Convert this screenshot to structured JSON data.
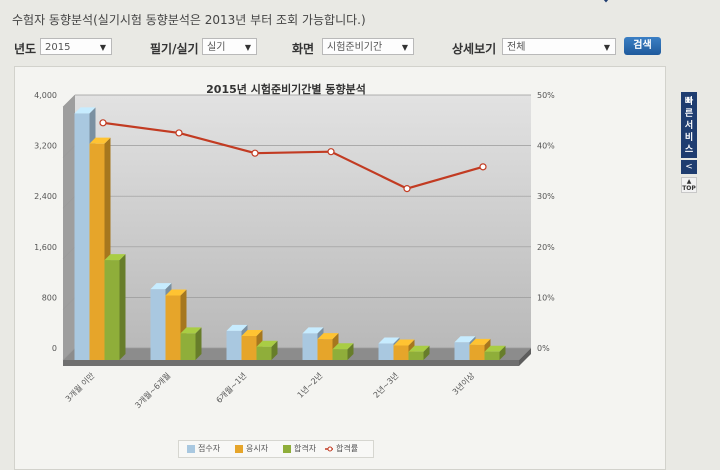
{
  "page": {
    "title": "수험자 동향분석(실기시험 동향분석은 2013년 부터 조회 가능합니다.)"
  },
  "filters": {
    "year_label": "년도",
    "year_value": "2015",
    "type_label": "필기/실기",
    "type_value": "실기",
    "screen_label": "화면",
    "screen_value": "시험준비기간",
    "detail_label": "상세보기",
    "detail_value": "전체",
    "search_label": "검색"
  },
  "side": {
    "quick_service_label": "빠른서비스",
    "top_label": "TOP"
  },
  "colors": {
    "applicants": "#a9c8e0",
    "examinees": "#e6a52a",
    "passers": "#8fae3a",
    "pass_rate": "#c23b22"
  },
  "chart_data": {
    "type": "bar",
    "title": "2015년 시험준비기간별 동향분석",
    "categories": [
      "3개월 이만",
      "3개월~6개월",
      "6개월~1년",
      "1년~2년",
      "2년~3년",
      "3년이상"
    ],
    "series": [
      {
        "name": "접수자",
        "values": [
          3900,
          1120,
          460,
          420,
          260,
          280
        ]
      },
      {
        "name": "응시자",
        "values": [
          3420,
          1020,
          380,
          330,
          230,
          240
        ]
      },
      {
        "name": "합격자",
        "values": [
          1580,
          420,
          210,
          170,
          130,
          130
        ]
      }
    ],
    "line_series": {
      "name": "합격률",
      "values": [
        44.5,
        42.5,
        38.5,
        38.8,
        31.5,
        35.8
      ]
    },
    "y_left": {
      "min": 0,
      "max": 4000,
      "ticks": [
        "0",
        "800",
        "1,600",
        "2,400",
        "3,200",
        "4,000"
      ]
    },
    "y_right": {
      "min": 0,
      "max": 50,
      "ticks": [
        "0%",
        "10%",
        "20%",
        "30%",
        "40%",
        "50%"
      ]
    },
    "grid": true,
    "legend": "bottom"
  }
}
